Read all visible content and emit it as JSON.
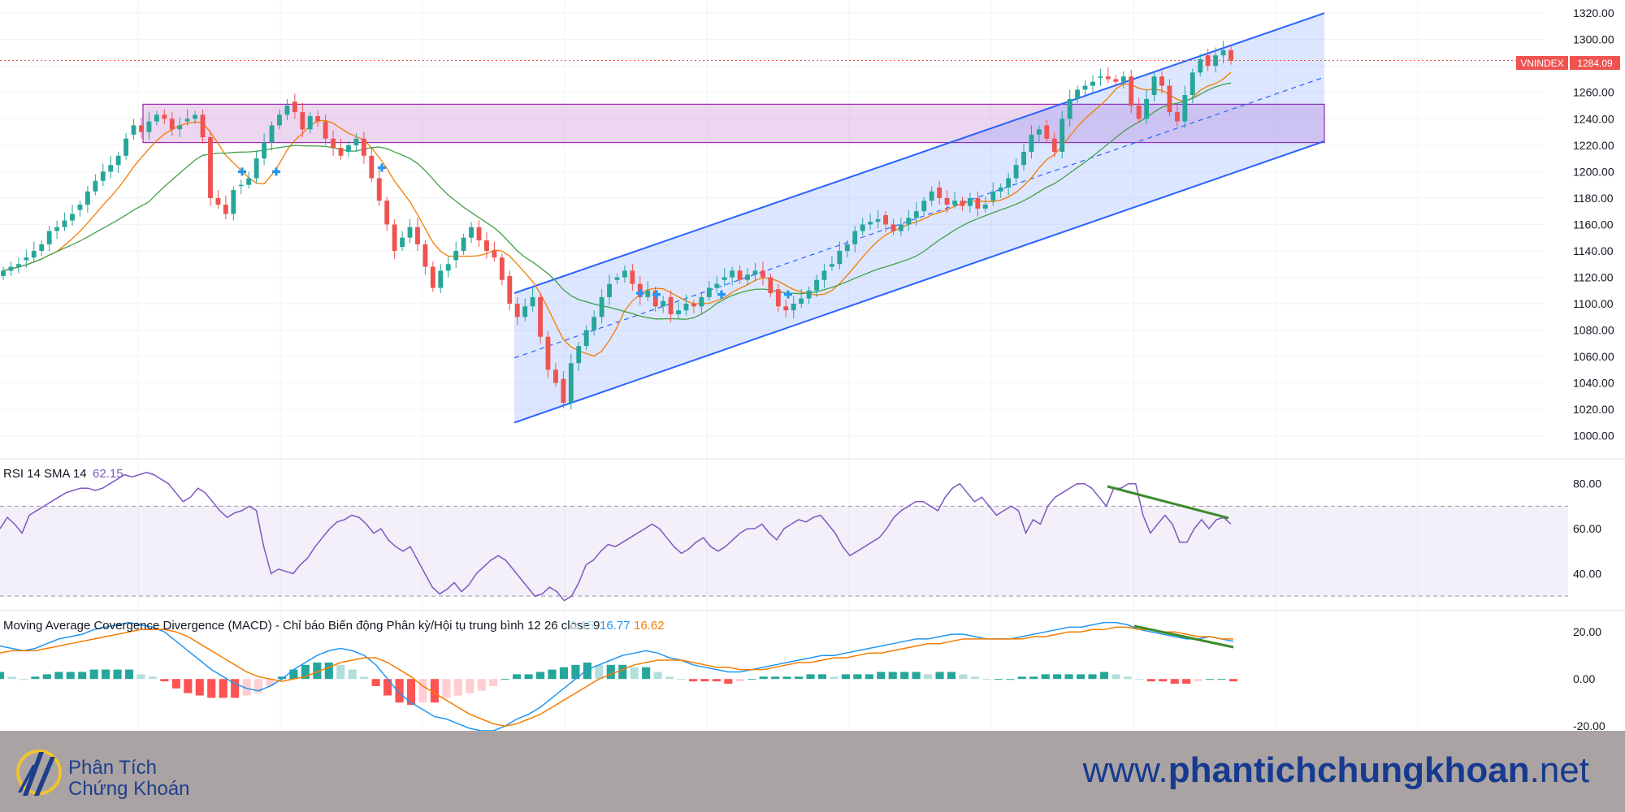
{
  "chart_data": [
    {
      "type": "candlestick",
      "symbol": "VNINDEX",
      "last_price": "1284.09",
      "ylim": [
        990,
        1325
      ],
      "y_ticks": [
        "1000.00",
        "1020.00",
        "1040.00",
        "1060.00",
        "1080.00",
        "1100.00",
        "1120.00",
        "1140.00",
        "1160.00",
        "1180.00",
        "1200.00",
        "1220.00",
        "1240.00",
        "1260.00",
        "1280.00",
        "1300.00",
        "1320.00"
      ],
      "grid": true,
      "bullish_color": "#26a69a",
      "bearish_color": "#ef5350",
      "closes": [
        1125,
        1128,
        1130,
        1135,
        1140,
        1145,
        1155,
        1158,
        1163,
        1168,
        1175,
        1185,
        1193,
        1200,
        1205,
        1212,
        1225,
        1235,
        1230,
        1238,
        1243,
        1240,
        1232,
        1235,
        1240,
        1243,
        1226,
        1180,
        1175,
        1168,
        1186,
        1190,
        1195,
        1210,
        1222,
        1235,
        1243,
        1250,
        1245,
        1232,
        1242,
        1238,
        1225,
        1218,
        1212,
        1220,
        1225,
        1212,
        1195,
        1178,
        1160,
        1140,
        1150,
        1158,
        1145,
        1128,
        1112,
        1125,
        1130,
        1140,
        1150,
        1158,
        1148,
        1140,
        1135,
        1118,
        1100,
        1090,
        1098,
        1105,
        1075,
        1050,
        1040,
        1025,
        1055,
        1068,
        1080,
        1090,
        1105,
        1115,
        1120,
        1125,
        1115,
        1105,
        1110,
        1098,
        1102,
        1092,
        1095,
        1100,
        1098,
        1105,
        1112,
        1115,
        1120,
        1125,
        1118,
        1122,
        1125,
        1120,
        1108,
        1098,
        1095,
        1100,
        1104,
        1110,
        1118,
        1125,
        1130,
        1140,
        1145,
        1155,
        1160,
        1162,
        1164,
        1160,
        1155,
        1160,
        1165,
        1170,
        1178,
        1185,
        1180,
        1175,
        1178,
        1174,
        1180,
        1172,
        1175,
        1185,
        1188,
        1195,
        1205,
        1215,
        1228,
        1232,
        1225,
        1215,
        1240,
        1255,
        1262,
        1265,
        1268,
        1272,
        1270,
        1268,
        1272,
        1250,
        1240,
        1255,
        1272,
        1265,
        1245,
        1238,
        1258,
        1275,
        1285,
        1280,
        1288,
        1292,
        1284
      ],
      "moving_averages": [
        "orange short-term",
        "green longer-term"
      ],
      "trend_channel": {
        "lower_start": 1010,
        "lower_end": 1223,
        "upper_start": 1108,
        "upper_end": 1320,
        "midline": "dashed"
      },
      "resistance_zone": [
        1222,
        1251
      ],
      "buy_markers": 6
    },
    {
      "type": "line",
      "name": "RSI",
      "label": "RSI 14 SMA 14",
      "value": "62.15",
      "ylim": [
        25,
        90
      ],
      "y_ticks": [
        "80.00",
        "60.00",
        "40.00"
      ],
      "bands": [
        30,
        70
      ],
      "line_color": "#7e57c2",
      "values": [
        60,
        65,
        62,
        58,
        66,
        68,
        70,
        72,
        74,
        76,
        77,
        78,
        78,
        77,
        78,
        80,
        82,
        84,
        83,
        84,
        85,
        84,
        82,
        80,
        76,
        72,
        74,
        78,
        76,
        72,
        68,
        65,
        67,
        68,
        70,
        68,
        52,
        40,
        42,
        41,
        40,
        44,
        47,
        52,
        56,
        60,
        63,
        64,
        66,
        65,
        62,
        58,
        60,
        55,
        52,
        50,
        52,
        46,
        40,
        34,
        31,
        33,
        36,
        32,
        35,
        40,
        43,
        46,
        48,
        46,
        42,
        38,
        34,
        30,
        31,
        34,
        32,
        28,
        30,
        36,
        44,
        46,
        50,
        53,
        52,
        54,
        56,
        58,
        60,
        62,
        60,
        56,
        52,
        49,
        51,
        54,
        56,
        52,
        50,
        52,
        55,
        58,
        60,
        60,
        62,
        58,
        55,
        60,
        62,
        64,
        63,
        65,
        66,
        62,
        58,
        52,
        48,
        50,
        52,
        54,
        56,
        60,
        65,
        68,
        70,
        72,
        72,
        70,
        68,
        74,
        78,
        80,
        76,
        72,
        74,
        70,
        66,
        68,
        70,
        68,
        58,
        64,
        62,
        70,
        74,
        76,
        78,
        80,
        80,
        78,
        74,
        70,
        78,
        78,
        80,
        80,
        66,
        58,
        62,
        66,
        62,
        54,
        54,
        60,
        64,
        60,
        64,
        65,
        62
      ]
    },
    {
      "type": "line",
      "name": "MACD",
      "label": "Moving Average Covergence Divergence (MACD) - Chỉ báo Biến động Phân kỳ/Hội tụ trung bình 12 26 close 9",
      "values_text": [
        "0.15",
        "16.77",
        "16.62"
      ],
      "values_colors": [
        "#a6d9e6",
        "#2196f3",
        "#f57c00"
      ],
      "ylim": [
        -22,
        28
      ],
      "y_ticks": [
        "20.00",
        "0.00",
        "-20.00"
      ],
      "macd_color": "#2196f3",
      "signal_color": "#f57c00",
      "macd": [
        14,
        13,
        12,
        13,
        15,
        17,
        18,
        19,
        21,
        22,
        23,
        24,
        23,
        22,
        20,
        16,
        12,
        8,
        4,
        1,
        -2,
        -4,
        -5,
        -3,
        0,
        4,
        7,
        10,
        12,
        13,
        12,
        10,
        6,
        0,
        -6,
        -10,
        -13,
        -16,
        -17,
        -19,
        -21,
        -22,
        -22,
        -20,
        -17,
        -15,
        -12,
        -8,
        -4,
        0,
        4,
        6,
        8,
        10,
        11,
        12,
        11,
        9,
        8,
        6,
        5,
        4,
        3,
        3,
        4,
        5,
        6,
        7,
        8,
        9,
        10,
        10,
        11,
        12,
        13,
        14,
        15,
        16,
        17,
        17,
        18,
        19,
        19,
        18,
        17,
        17,
        17,
        18,
        19,
        20,
        21,
        22,
        22,
        23,
        24,
        24,
        23,
        21,
        20,
        19,
        18,
        17,
        17,
        18,
        17,
        16
      ],
      "signal": [
        11,
        12,
        12,
        12,
        13,
        14,
        15,
        16,
        17,
        18,
        19,
        20,
        21,
        21,
        21,
        20,
        18,
        15,
        12,
        9,
        6,
        3,
        1,
        0,
        -1,
        0,
        1,
        3,
        5,
        7,
        8,
        9,
        9,
        7,
        4,
        1,
        -3,
        -6,
        -9,
        -12,
        -15,
        -17,
        -19,
        -20,
        -19,
        -17,
        -15,
        -12,
        -9,
        -6,
        -3,
        0,
        2,
        4,
        6,
        7,
        8,
        8,
        8,
        7,
        6,
        5,
        5,
        4,
        4,
        4,
        5,
        6,
        7,
        7,
        8,
        9,
        9,
        10,
        11,
        11,
        12,
        13,
        14,
        15,
        15,
        16,
        17,
        17,
        17,
        17,
        17,
        17,
        18,
        18,
        19,
        20,
        20,
        21,
        21,
        22,
        22,
        21,
        21,
        20,
        20,
        19,
        18,
        18,
        17,
        17
      ]
    }
  ],
  "footer": {
    "logo_line1": "Phân Tích",
    "logo_line2": "Chứng Khoán",
    "site_prefix": "www.",
    "site_bold": "phantichchungkhoan",
    "site_suffix": ".net"
  }
}
